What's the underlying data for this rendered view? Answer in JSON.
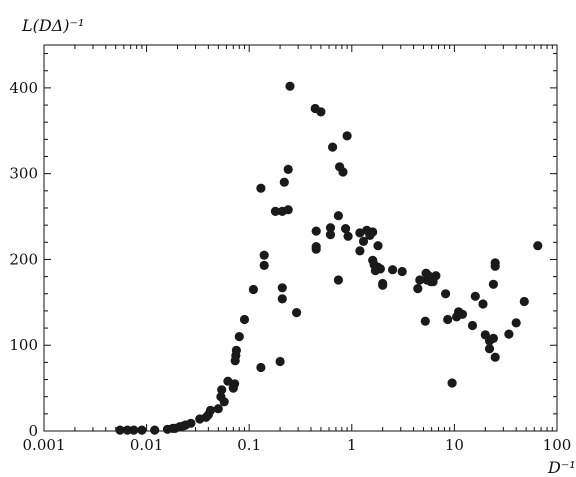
{
  "chart_data": {
    "type": "scatter",
    "title": "",
    "xlabel": "D⁻¹",
    "ylabel": "L(DΔ)⁻¹",
    "xscale": "log",
    "xlim": [
      0.001,
      100
    ],
    "ylim": [
      0,
      450
    ],
    "x_ticks": [
      0.001,
      0.01,
      0.1,
      1,
      10,
      100
    ],
    "x_tick_labels": [
      "0.001",
      "0.01",
      "0.1",
      "1",
      "10",
      "100"
    ],
    "y_ticks": [
      0,
      100,
      200,
      300,
      400
    ],
    "y_tick_labels": [
      "0",
      "100",
      "200",
      "300",
      "400"
    ],
    "grid": false,
    "series": [
      {
        "marker": "filled-circle",
        "color": "#1a1a1a",
        "points": [
          [
            0.0055,
            1
          ],
          [
            0.0065,
            1
          ],
          [
            0.0075,
            1
          ],
          [
            0.009,
            1
          ],
          [
            0.012,
            1
          ],
          [
            0.016,
            2
          ],
          [
            0.018,
            3
          ],
          [
            0.019,
            3
          ],
          [
            0.021,
            5
          ],
          [
            0.023,
            6
          ],
          [
            0.024,
            7
          ],
          [
            0.027,
            9
          ],
          [
            0.033,
            14
          ],
          [
            0.038,
            16
          ],
          [
            0.04,
            19
          ],
          [
            0.042,
            24
          ],
          [
            0.05,
            26
          ],
          [
            0.053,
            40
          ],
          [
            0.054,
            48
          ],
          [
            0.057,
            34
          ],
          [
            0.062,
            58
          ],
          [
            0.07,
            50
          ],
          [
            0.072,
            55
          ],
          [
            0.073,
            82
          ],
          [
            0.074,
            88
          ],
          [
            0.075,
            94
          ],
          [
            0.08,
            110
          ],
          [
            0.09,
            130
          ],
          [
            0.11,
            165
          ],
          [
            0.13,
            74
          ],
          [
            0.13,
            283
          ],
          [
            0.14,
            193
          ],
          [
            0.14,
            205
          ],
          [
            0.18,
            256
          ],
          [
            0.2,
            81
          ],
          [
            0.21,
            256
          ],
          [
            0.21,
            154
          ],
          [
            0.21,
            167
          ],
          [
            0.22,
            290
          ],
          [
            0.24,
            258
          ],
          [
            0.24,
            305
          ],
          [
            0.25,
            402
          ],
          [
            0.29,
            138
          ],
          [
            0.44,
            376
          ],
          [
            0.45,
            212
          ],
          [
            0.45,
            215
          ],
          [
            0.45,
            233
          ],
          [
            0.5,
            372
          ],
          [
            0.62,
            229
          ],
          [
            0.62,
            237
          ],
          [
            0.65,
            331
          ],
          [
            0.74,
            176
          ],
          [
            0.74,
            251
          ],
          [
            0.76,
            308
          ],
          [
            0.82,
            302
          ],
          [
            0.87,
            236
          ],
          [
            0.9,
            344
          ],
          [
            0.92,
            227
          ],
          [
            1.2,
            210
          ],
          [
            1.2,
            231
          ],
          [
            1.3,
            221
          ],
          [
            1.4,
            234
          ],
          [
            1.5,
            228
          ],
          [
            1.6,
            199
          ],
          [
            1.6,
            232
          ],
          [
            1.65,
            194
          ],
          [
            1.7,
            187
          ],
          [
            1.8,
            216
          ],
          [
            1.8,
            191
          ],
          [
            1.9,
            189
          ],
          [
            2.0,
            172
          ],
          [
            2.0,
            170
          ],
          [
            2.5,
            188
          ],
          [
            3.1,
            186
          ],
          [
            4.4,
            166
          ],
          [
            4.6,
            176
          ],
          [
            5.2,
            128
          ],
          [
            5.3,
            184
          ],
          [
            5.4,
            176
          ],
          [
            5.6,
            181
          ],
          [
            5.9,
            174
          ],
          [
            6.2,
            174
          ],
          [
            6.6,
            181
          ],
          [
            8.2,
            160
          ],
          [
            8.6,
            130
          ],
          [
            9.5,
            56
          ],
          [
            10.5,
            133
          ],
          [
            11,
            139
          ],
          [
            12,
            136
          ],
          [
            15,
            123
          ],
          [
            16,
            157
          ],
          [
            19,
            148
          ],
          [
            20,
            112
          ],
          [
            22,
            96
          ],
          [
            22,
            105
          ],
          [
            24,
            171
          ],
          [
            24,
            108
          ],
          [
            25,
            192
          ],
          [
            25,
            196
          ],
          [
            25,
            86
          ],
          [
            34,
            113
          ],
          [
            40,
            126
          ],
          [
            48,
            151
          ],
          [
            65,
            216
          ]
        ]
      }
    ]
  }
}
